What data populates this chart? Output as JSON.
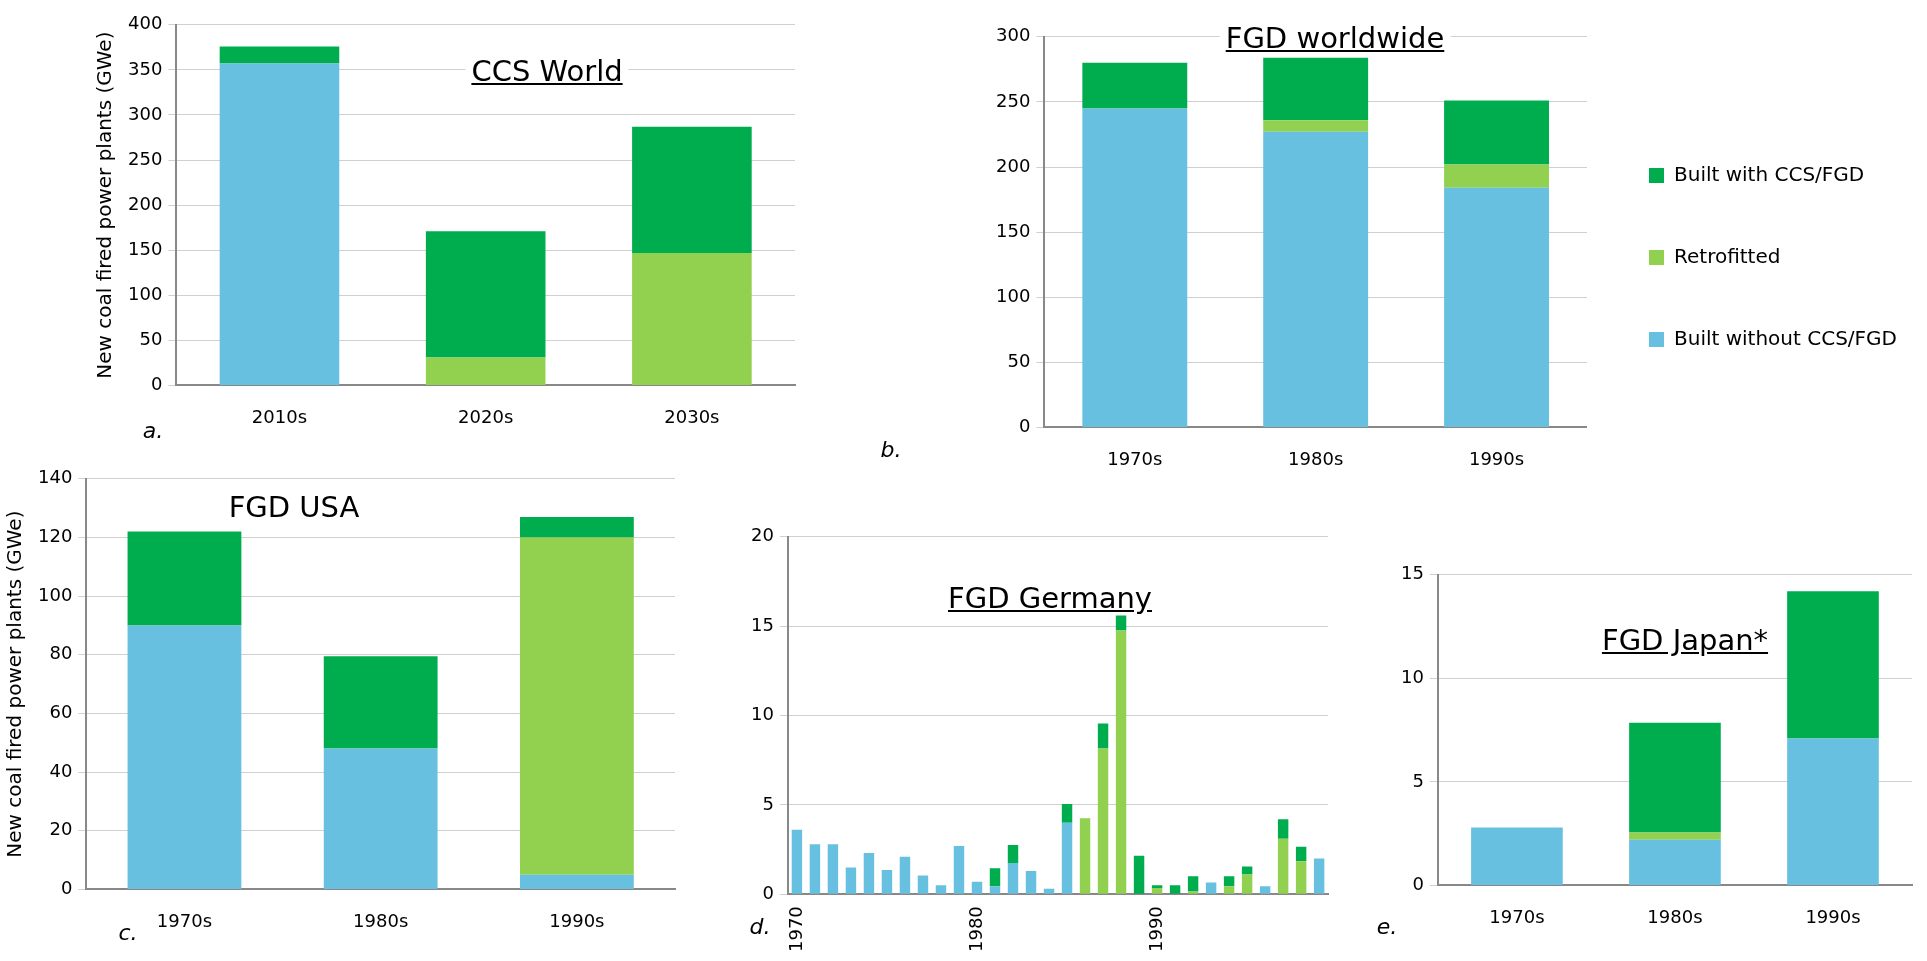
{
  "chart_data": [
    {
      "type": "bar",
      "title": "CCS World",
      "ylabel": "New coal fired power plants (GWe)",
      "annotations": [
        "a."
      ],
      "categories": [
        "2010s",
        "2020s",
        "2030s"
      ],
      "stacked": true,
      "ylim": [
        0,
        400
      ],
      "yticks": [
        0,
        50,
        100,
        150,
        200,
        250,
        300,
        350,
        400
      ],
      "grid": "y",
      "series": [
        {
          "color": "#68c0e1",
          "values": [
            357,
            null,
            null
          ]
        },
        {
          "color": "#92d050",
          "values": [
            null,
            31,
            147
          ]
        },
        {
          "color": "#00ad4e",
          "values": [
            19,
            140,
            140
          ]
        }
      ]
    },
    {
      "type": "bar",
      "title": "FGD worldwide",
      "annotations": [
        "b."
      ],
      "categories": [
        "1970s",
        "1980s",
        "1990s"
      ],
      "stacked": true,
      "ylim": [
        0,
        300
      ],
      "yticks": [
        0,
        50,
        100,
        150,
        200,
        250,
        300
      ],
      "grid": "y",
      "legend": "right",
      "series": [
        {
          "name": "Built without CCS/FGD",
          "color": "#68c0e1",
          "values": [
            245,
            227,
            184
          ]
        },
        {
          "name": "Retrofitted",
          "color": "#92d050",
          "values": [
            null,
            9,
            18
          ]
        },
        {
          "name": "Built with CCS/FGD",
          "color": "#00ad4e",
          "values": [
            35,
            48,
            49
          ]
        }
      ]
    },
    {
      "type": "bar",
      "title": "FGD USA",
      "ylabel": "New coal fired power plants (GWe)",
      "annotations": [
        "c."
      ],
      "categories": [
        "1970s",
        "1980s",
        "1990s"
      ],
      "stacked": true,
      "ylim": [
        0,
        140
      ],
      "yticks": [
        0,
        20,
        40,
        60,
        80,
        100,
        120,
        140
      ],
      "grid": "y",
      "series": [
        {
          "color": "#68c0e1",
          "values": [
            90,
            48,
            5
          ]
        },
        {
          "color": "#92d050",
          "values": [
            null,
            null,
            115
          ]
        },
        {
          "color": "#00ad4e",
          "values": [
            32,
            31.5,
            7
          ]
        }
      ]
    },
    {
      "type": "bar",
      "title": "FGD Germany",
      "annotations": [
        "d."
      ],
      "categories": [
        "1970",
        null,
        null,
        null,
        null,
        null,
        null,
        null,
        null,
        null,
        "1980",
        null,
        null,
        null,
        null,
        null,
        null,
        null,
        null,
        null,
        "1990",
        null,
        null,
        null,
        null,
        null,
        null,
        null,
        null,
        null
      ],
      "stacked": true,
      "ylim": [
        0,
        20
      ],
      "yticks": [
        0,
        5,
        10,
        15,
        20
      ],
      "grid": "y",
      "series": [
        {
          "color": "#68c0e1",
          "values": [
            3.6,
            2.8,
            2.8,
            1.5,
            2.3,
            1.35,
            2.1,
            1.05,
            0.5,
            2.7,
            0.7,
            0.45,
            1.75,
            1.3,
            0.3,
            4.0,
            null,
            null,
            null,
            null,
            null,
            null,
            null,
            0.65,
            null,
            null,
            0.45,
            null,
            null,
            2.0
          ]
        },
        {
          "color": "#92d050",
          "values": [
            null,
            null,
            null,
            null,
            null,
            null,
            null,
            null,
            null,
            null,
            null,
            null,
            null,
            null,
            null,
            null,
            4.25,
            8.15,
            14.75,
            null,
            0.35,
            null,
            0.15,
            null,
            0.45,
            1.1,
            null,
            3.1,
            1.85,
            null
          ]
        },
        {
          "color": "#00ad4e",
          "values": [
            null,
            null,
            null,
            null,
            null,
            null,
            null,
            null,
            null,
            null,
            null,
            1.0,
            1.0,
            null,
            null,
            1.05,
            null,
            1.4,
            0.85,
            2.15,
            0.15,
            0.5,
            0.85,
            null,
            0.55,
            0.45,
            null,
            1.1,
            0.8,
            null
          ]
        }
      ]
    },
    {
      "type": "bar",
      "title": "FGD Japan*",
      "annotations": [
        "e."
      ],
      "categories": [
        "1970s",
        "1980s",
        "1990s"
      ],
      "stacked": true,
      "ylim": [
        0,
        15
      ],
      "yticks": [
        0,
        5,
        10,
        15
      ],
      "grid": "y",
      "series": [
        {
          "color": "#68c0e1",
          "values": [
            2.8,
            2.2,
            7.1
          ]
        },
        {
          "color": "#92d050",
          "values": [
            null,
            0.35,
            null
          ]
        },
        {
          "color": "#00ad4e",
          "values": [
            null,
            5.3,
            7.1
          ]
        }
      ]
    }
  ]
}
